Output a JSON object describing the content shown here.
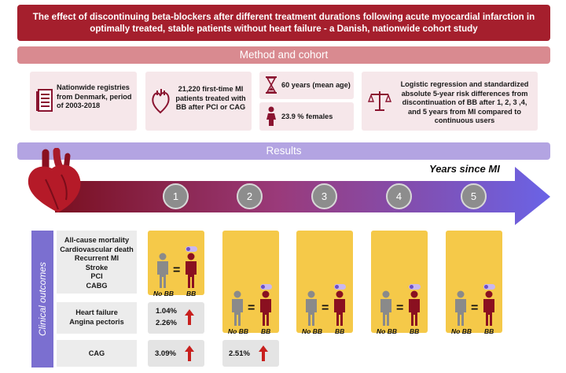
{
  "title": "The effect of discontinuing beta-blockers after different treatment durations following acute myocardial infarction in optimally treated, stable patients without heart failure - a Danish, nationwide cohort study",
  "method": {
    "header": "Method and cohort",
    "registries": "Nationwide registries from Denmark, period of 2003-2018",
    "patients": "21,220 first-time MI patients treated with BB after PCI or CAG",
    "age": "60 years (mean age)",
    "females": "23.9 % females",
    "analysis": "Logistic regression and standardized absolute 5-year risk differences from discontinuation of BB after 1, 2, 3 ,4, and 5 years from MI compared to continuous users"
  },
  "results": {
    "header": "Results",
    "timeline_label": "Years since MI",
    "years": [
      "1",
      "2",
      "3",
      "4",
      "5"
    ],
    "side_label": "Clinical outcomes",
    "outcomes": {
      "group1": [
        "All-cause mortality",
        "Cardiovascular death",
        "Recurrent MI",
        "Stroke",
        "PCI",
        "CABG"
      ],
      "group2": [
        "Heart failure",
        "Angina pectoris"
      ],
      "group3": [
        "CAG"
      ]
    },
    "no_bb_label": "No BB",
    "bb_label": "BB",
    "equals": "=",
    "values": {
      "hf_y1": "1.04%",
      "ap_y1": "2.26%",
      "cag_y1": "3.09%",
      "cag_y2": "2.51%"
    }
  },
  "colors": {
    "title_bg": "#a51f2d",
    "method_header": "#d98a90",
    "card_bg": "#f6e7ea",
    "results_header": "#b3a4e2",
    "panel": "#f5c949",
    "arrow_dark": "#7a1020",
    "arrow_light": "#6a63e6",
    "up_arrow": "#c8201e"
  }
}
